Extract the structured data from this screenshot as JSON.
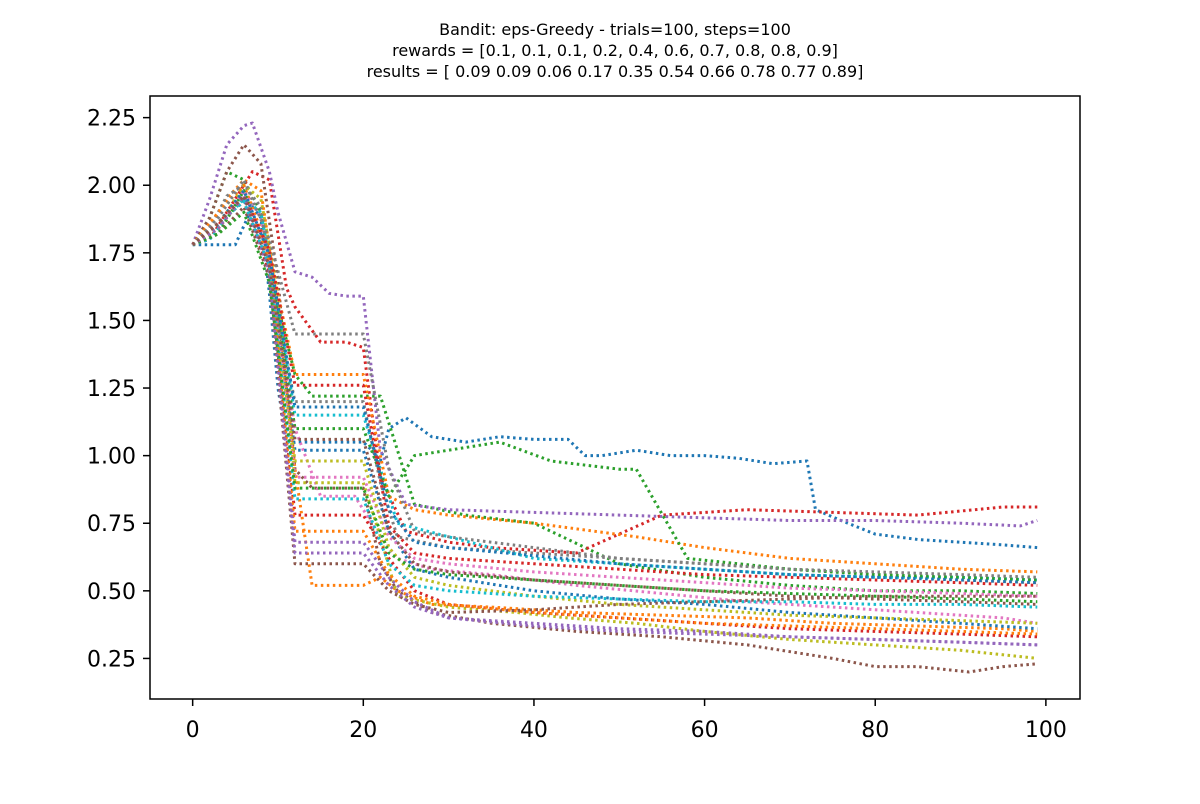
{
  "chart_data": {
    "type": "line",
    "title_lines": [
      "Bandit: eps-Greedy - trials=100, steps=100",
      "rewards = [0.1, 0.1, 0.1, 0.2, 0.4, 0.6, 0.7, 0.8, 0.8, 0.9]",
      "results = [ 0.09  0.09  0.06  0.17  0.35  0.54  0.66  0.78  0.77  0.89]"
    ],
    "xlabel": "",
    "ylabel": "",
    "xlim": [
      -5,
      104
    ],
    "ylim": [
      0.1,
      2.33
    ],
    "xticks": [
      0,
      20,
      40,
      60,
      80,
      100
    ],
    "xtick_labels": [
      "0",
      "20",
      "40",
      "60",
      "80",
      "100"
    ],
    "yticks": [
      0.25,
      0.5,
      0.75,
      1.0,
      1.25,
      1.5,
      1.75,
      2.0,
      2.25
    ],
    "ytick_labels": [
      "0.25",
      "0.50",
      "0.75",
      "1.00",
      "1.25",
      "1.50",
      "1.75",
      "2.00",
      "2.25"
    ],
    "grid": false,
    "legend": "none",
    "line_style": "dotted",
    "trials": 100,
    "steps": 100,
    "colors": [
      "#1f77b4",
      "#ff7f0e",
      "#2ca02c",
      "#d62728",
      "#9467bd",
      "#8c564b",
      "#e377c2",
      "#7f7f7f",
      "#bcbd22",
      "#17becf"
    ],
    "series": [
      {
        "x": [
          0,
          1,
          3,
          5,
          6,
          7,
          8,
          9,
          10,
          11,
          13,
          16,
          18,
          20,
          21,
          22,
          23,
          25,
          28,
          32,
          36,
          40,
          44,
          46,
          48,
          52,
          56,
          60,
          64,
          68,
          72,
          73,
          76,
          80,
          85,
          90,
          95,
          99
        ],
        "y": [
          1.78,
          1.78,
          1.78,
          1.78,
          1.85,
          1.92,
          1.88,
          1.6,
          1.25,
          1.05,
          1.05,
          1.05,
          1.05,
          1.05,
          1.02,
          0.98,
          1.1,
          1.14,
          1.07,
          1.05,
          1.07,
          1.06,
          1.06,
          1.0,
          1.0,
          1.02,
          1.0,
          1.0,
          0.99,
          0.97,
          0.98,
          0.8,
          0.76,
          0.71,
          0.69,
          0.68,
          0.67,
          0.66
        ]
      },
      {
        "x": [
          0,
          2,
          4,
          6,
          8,
          10,
          12,
          14,
          16,
          20,
          22,
          24,
          28,
          35,
          45,
          55,
          65,
          75,
          85,
          95,
          99
        ],
        "y": [
          1.78,
          1.85,
          1.95,
          2.02,
          1.98,
          1.55,
          0.95,
          0.52,
          0.52,
          0.52,
          0.55,
          0.5,
          0.45,
          0.44,
          0.42,
          0.41,
          0.4,
          0.38,
          0.37,
          0.36,
          0.35
        ]
      },
      {
        "x": [
          0,
          2,
          4,
          6,
          8,
          10,
          12,
          14,
          18,
          22,
          26,
          32,
          40,
          50,
          60,
          70,
          80,
          90,
          99
        ],
        "y": [
          1.78,
          1.88,
          2.05,
          2.02,
          1.9,
          1.55,
          1.3,
          1.22,
          1.22,
          1.22,
          0.82,
          0.78,
          0.75,
          0.6,
          0.55,
          0.52,
          0.5,
          0.5,
          0.49
        ]
      },
      {
        "x": [
          0,
          2,
          5,
          7,
          9,
          10,
          11,
          12,
          15,
          18,
          20,
          22,
          25,
          30,
          35,
          45,
          55,
          65,
          75,
          85,
          95,
          99
        ],
        "y": [
          1.78,
          1.8,
          1.95,
          2.05,
          2.02,
          1.82,
          1.62,
          1.55,
          1.42,
          1.42,
          1.4,
          0.92,
          0.72,
          0.68,
          0.66,
          0.64,
          0.78,
          0.8,
          0.79,
          0.78,
          0.81,
          0.81
        ]
      },
      {
        "x": [
          0,
          2,
          4,
          6,
          7,
          9,
          10,
          12,
          14,
          16,
          18,
          20,
          22,
          25,
          30,
          40,
          50,
          60,
          70,
          80,
          90,
          97,
          99
        ],
        "y": [
          1.78,
          1.95,
          2.15,
          2.22,
          2.23,
          2.05,
          1.9,
          1.68,
          1.66,
          1.6,
          1.59,
          1.59,
          1.02,
          0.82,
          0.8,
          0.79,
          0.78,
          0.77,
          0.76,
          0.76,
          0.75,
          0.74,
          0.76
        ]
      },
      {
        "x": [
          0,
          2,
          4,
          6,
          8,
          10,
          12,
          14,
          18,
          20,
          22,
          24,
          28,
          35,
          45,
          55,
          65,
          75,
          80,
          85,
          91,
          95,
          99
        ],
        "y": [
          1.78,
          1.88,
          2.05,
          2.15,
          2.08,
          1.65,
          0.95,
          0.88,
          0.88,
          0.88,
          0.6,
          0.5,
          0.42,
          0.38,
          0.35,
          0.33,
          0.3,
          0.25,
          0.22,
          0.22,
          0.2,
          0.22,
          0.23
        ]
      },
      {
        "x": [
          0,
          2,
          4,
          6,
          8,
          10,
          12,
          15,
          19,
          22,
          24,
          28,
          35,
          45,
          55,
          65,
          75,
          85,
          95,
          99
        ],
        "y": [
          1.78,
          1.82,
          1.9,
          1.98,
          1.88,
          1.5,
          1.1,
          0.85,
          0.85,
          0.7,
          0.62,
          0.58,
          0.56,
          0.52,
          0.49,
          0.46,
          0.44,
          0.42,
          0.4,
          0.38
        ]
      },
      {
        "x": [
          0,
          2,
          4,
          6,
          8,
          10,
          12,
          16,
          20,
          22,
          24,
          30,
          40,
          50,
          60,
          70,
          80,
          90,
          99
        ],
        "y": [
          1.78,
          1.84,
          1.96,
          2.0,
          1.92,
          1.5,
          1.2,
          1.2,
          1.2,
          0.9,
          0.7,
          0.66,
          0.64,
          0.62,
          0.6,
          0.58,
          0.56,
          0.54,
          0.53
        ]
      },
      {
        "x": [
          0,
          2,
          4,
          6,
          8,
          10,
          12,
          16,
          20,
          22,
          24,
          30,
          38,
          44,
          52,
          60,
          70,
          80,
          90,
          99
        ],
        "y": [
          1.78,
          1.82,
          1.9,
          2.0,
          1.95,
          1.6,
          0.9,
          0.9,
          0.9,
          0.7,
          0.48,
          0.44,
          0.42,
          0.4,
          0.38,
          0.35,
          0.32,
          0.3,
          0.28,
          0.25
        ]
      },
      {
        "x": [
          0,
          2,
          4,
          6,
          8,
          10,
          12,
          16,
          20,
          22,
          24,
          30,
          40,
          50,
          60,
          70,
          80,
          90,
          99
        ],
        "y": [
          1.78,
          1.8,
          1.88,
          1.95,
          1.9,
          1.55,
          1.15,
          1.15,
          1.15,
          0.95,
          0.75,
          0.7,
          0.62,
          0.6,
          0.58,
          0.56,
          0.55,
          0.55,
          0.54
        ]
      },
      {
        "x": [
          0,
          3,
          6,
          9,
          12,
          16,
          20,
          23,
          26,
          30,
          40,
          50,
          60,
          70,
          80,
          90,
          99
        ],
        "y": [
          1.78,
          1.85,
          1.95,
          1.7,
          1.02,
          1.02,
          1.02,
          0.72,
          0.58,
          0.55,
          0.5,
          0.47,
          0.45,
          0.42,
          0.4,
          0.38,
          0.36
        ]
      },
      {
        "x": [
          0,
          3,
          6,
          9,
          12,
          16,
          20,
          23,
          26,
          30,
          40,
          52,
          60,
          70,
          80,
          90,
          99
        ],
        "y": [
          1.78,
          1.9,
          2.0,
          1.75,
          1.3,
          1.3,
          1.3,
          0.85,
          0.8,
          0.78,
          0.75,
          0.7,
          0.66,
          0.62,
          0.6,
          0.58,
          0.57
        ]
      },
      {
        "x": [
          0,
          3,
          6,
          9,
          12,
          16,
          20,
          23,
          26,
          30,
          36,
          42,
          50,
          52,
          58,
          70,
          80,
          90,
          99
        ],
        "y": [
          1.78,
          1.82,
          1.98,
          1.72,
          1.1,
          1.1,
          1.1,
          0.85,
          1.0,
          1.02,
          1.05,
          0.98,
          0.95,
          0.95,
          0.62,
          0.58,
          0.56,
          0.55,
          0.54
        ]
      },
      {
        "x": [
          0,
          3,
          6,
          9,
          12,
          16,
          20,
          23,
          26,
          30,
          40,
          50,
          60,
          70,
          80,
          90,
          99
        ],
        "y": [
          1.78,
          1.86,
          1.94,
          1.68,
          0.78,
          0.78,
          0.78,
          0.62,
          0.5,
          0.45,
          0.42,
          0.4,
          0.38,
          0.36,
          0.35,
          0.34,
          0.33
        ]
      },
      {
        "x": [
          0,
          3,
          6,
          9,
          12,
          16,
          20,
          23,
          26,
          30,
          40,
          50,
          60,
          70,
          80,
          90,
          99
        ],
        "y": [
          1.78,
          1.86,
          1.96,
          1.7,
          0.68,
          0.68,
          0.68,
          0.55,
          0.46,
          0.4,
          0.38,
          0.36,
          0.35,
          0.33,
          0.32,
          0.31,
          0.3
        ]
      },
      {
        "x": [
          0,
          3,
          6,
          9,
          12,
          16,
          20,
          23,
          26,
          30,
          40,
          50,
          60,
          70,
          80,
          90,
          99
        ],
        "y": [
          1.78,
          1.82,
          1.92,
          1.66,
          0.6,
          0.6,
          0.6,
          0.5,
          0.45,
          0.42,
          0.43,
          0.45,
          0.46,
          0.47,
          0.48,
          0.48,
          0.48
        ]
      },
      {
        "x": [
          0,
          3,
          6,
          9,
          12,
          16,
          20,
          23,
          26,
          30,
          40,
          50,
          60,
          70,
          80,
          90,
          99
        ],
        "y": [
          1.78,
          1.84,
          1.98,
          1.74,
          0.92,
          0.92,
          0.92,
          0.7,
          0.62,
          0.6,
          0.57,
          0.55,
          0.53,
          0.51,
          0.5,
          0.49,
          0.48
        ]
      },
      {
        "x": [
          0,
          3,
          6,
          9,
          12,
          16,
          20,
          23,
          26,
          30,
          40,
          50,
          60,
          70,
          80,
          90,
          99
        ],
        "y": [
          1.78,
          1.88,
          2.02,
          1.8,
          1.45,
          1.45,
          1.45,
          0.95,
          0.72,
          0.7,
          0.66,
          0.62,
          0.6,
          0.58,
          0.57,
          0.56,
          0.55
        ]
      },
      {
        "x": [
          0,
          3,
          6,
          9,
          12,
          16,
          20,
          23,
          26,
          30,
          40,
          50,
          60,
          70,
          80,
          90,
          99
        ],
        "y": [
          1.78,
          1.84,
          1.96,
          1.7,
          0.98,
          0.98,
          0.98,
          0.66,
          0.55,
          0.52,
          0.48,
          0.45,
          0.43,
          0.41,
          0.4,
          0.39,
          0.38
        ]
      },
      {
        "x": [
          0,
          3,
          6,
          9,
          12,
          16,
          20,
          23,
          26,
          30,
          40,
          50,
          60,
          70,
          80,
          90,
          99
        ],
        "y": [
          1.78,
          1.86,
          1.94,
          1.7,
          0.84,
          0.84,
          0.84,
          0.6,
          0.52,
          0.5,
          0.48,
          0.47,
          0.46,
          0.46,
          0.45,
          0.45,
          0.44
        ]
      },
      {
        "x": [
          0,
          3,
          6,
          9,
          12,
          16,
          20,
          23,
          26,
          30,
          40,
          50,
          60,
          70,
          80,
          90,
          99
        ],
        "y": [
          1.78,
          1.86,
          1.98,
          1.74,
          1.18,
          1.18,
          1.18,
          0.8,
          0.68,
          0.66,
          0.63,
          0.6,
          0.58,
          0.56,
          0.55,
          0.54,
          0.53
        ]
      },
      {
        "x": [
          0,
          3,
          6,
          9,
          12,
          16,
          20,
          23,
          26,
          30,
          40,
          50,
          60,
          70,
          80,
          90,
          99
        ],
        "y": [
          1.78,
          1.84,
          1.96,
          1.72,
          0.72,
          0.72,
          0.72,
          0.56,
          0.48,
          0.45,
          0.42,
          0.4,
          0.38,
          0.37,
          0.36,
          0.35,
          0.34
        ]
      },
      {
        "x": [
          0,
          3,
          6,
          9,
          12,
          16,
          20,
          23,
          26,
          30,
          40,
          50,
          60,
          70,
          80,
          90,
          99
        ],
        "y": [
          1.78,
          1.82,
          1.9,
          1.64,
          0.88,
          0.88,
          0.88,
          0.64,
          0.58,
          0.56,
          0.54,
          0.52,
          0.5,
          0.49,
          0.48,
          0.47,
          0.46
        ]
      },
      {
        "x": [
          0,
          3,
          6,
          9,
          12,
          16,
          20,
          23,
          26,
          30,
          40,
          50,
          60,
          70,
          80,
          90,
          99
        ],
        "y": [
          1.78,
          1.86,
          1.96,
          1.76,
          1.26,
          1.26,
          1.26,
          0.74,
          0.64,
          0.62,
          0.6,
          0.58,
          0.56,
          0.55,
          0.54,
          0.53,
          0.52
        ]
      },
      {
        "x": [
          0,
          3,
          6,
          9,
          12,
          16,
          20,
          23,
          26,
          30,
          40,
          50,
          60,
          70,
          80,
          90,
          99
        ],
        "y": [
          1.78,
          1.84,
          1.96,
          1.68,
          0.64,
          0.64,
          0.64,
          0.52,
          0.44,
          0.4,
          0.37,
          0.35,
          0.34,
          0.33,
          0.32,
          0.31,
          0.3
        ]
      },
      {
        "x": [
          0,
          3,
          6,
          9,
          12,
          16,
          20,
          23,
          26,
          30,
          40,
          50,
          60,
          70,
          80,
          90,
          99
        ],
        "y": [
          1.78,
          1.86,
          1.96,
          1.7,
          1.06,
          1.06,
          1.06,
          0.72,
          0.6,
          0.57,
          0.54,
          0.52,
          0.5,
          0.48,
          0.47,
          0.46,
          0.45
        ]
      }
    ]
  }
}
